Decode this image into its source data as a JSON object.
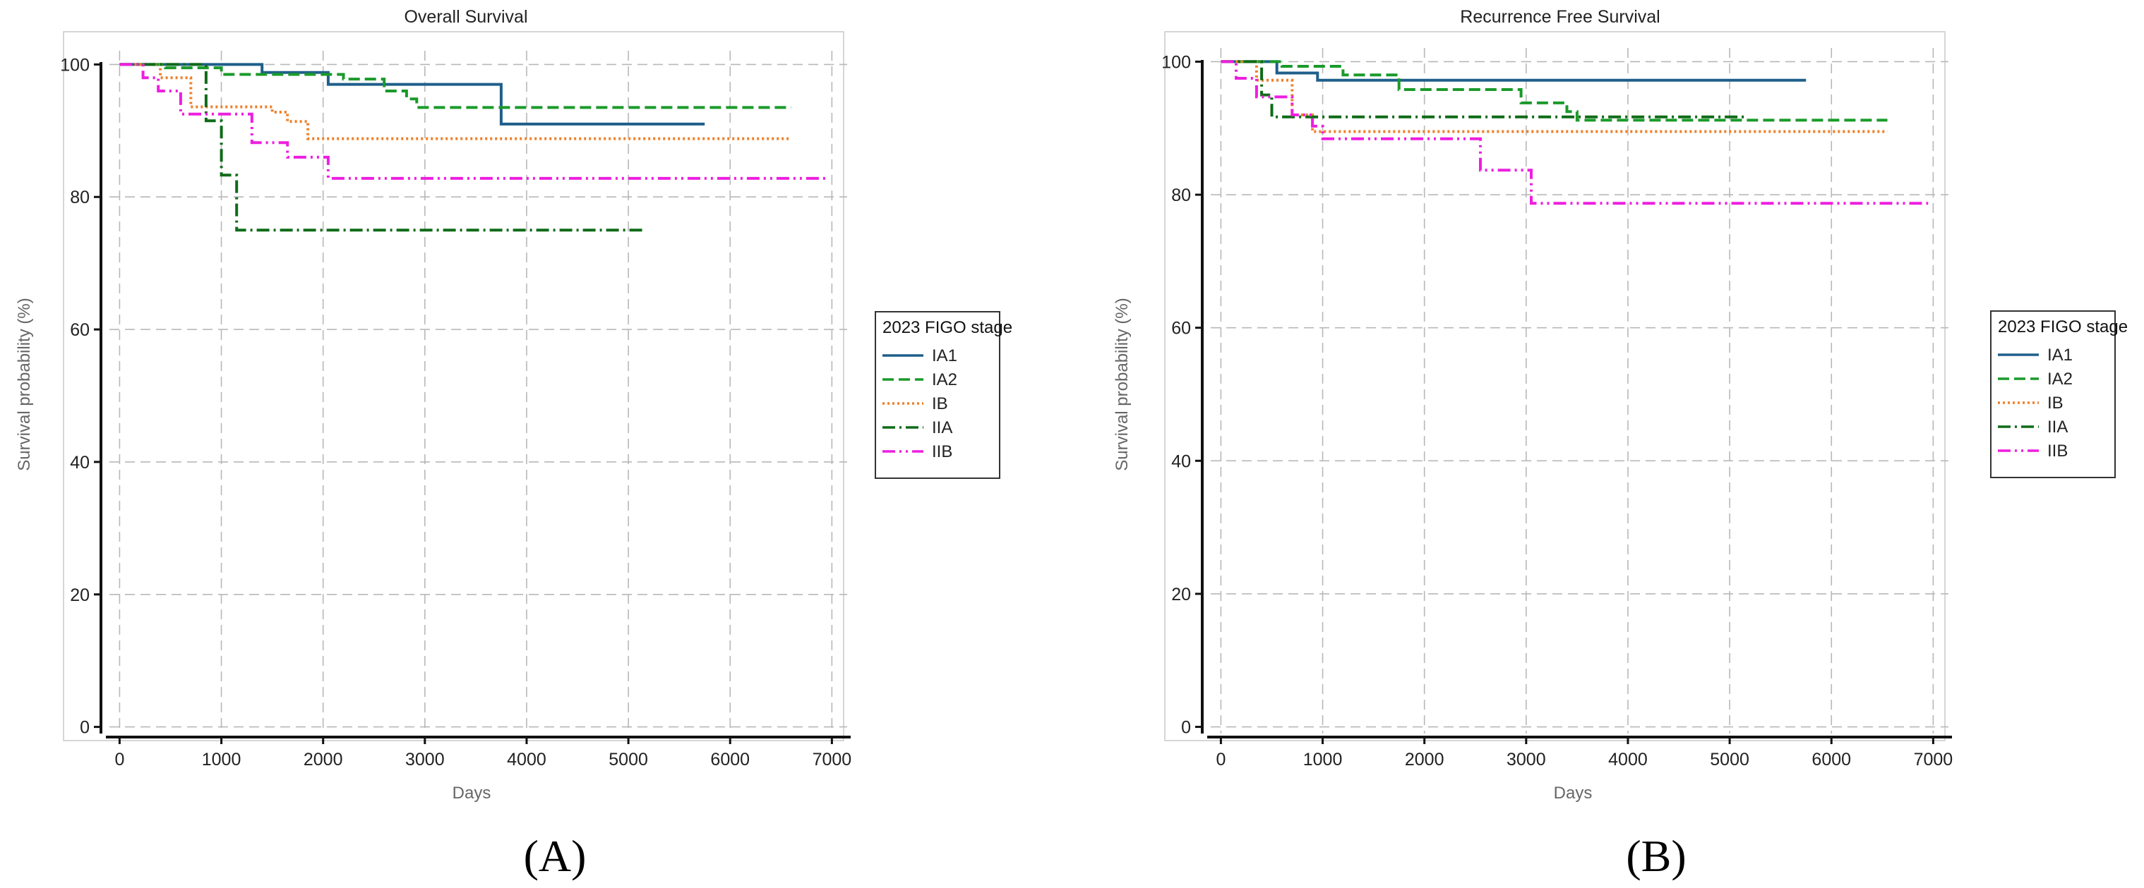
{
  "legend_title": "2023 FIGO stage",
  "colors": {
    "IA1": "#1f5f8b",
    "IA2": "#1a9a2a",
    "IB": "#ef7f28",
    "IIA": "#0f6b18",
    "IIB": "#ee1ee0"
  },
  "chart_data": [
    {
      "type": "line",
      "step": true,
      "panel_label": "(A)",
      "title": "Overall Survival",
      "xlabel": "Days",
      "ylabel": "Survival probability (%)",
      "xlim": [
        -100,
        7150
      ],
      "ylim": [
        -1,
        101
      ],
      "xticks": [
        0,
        1000,
        2000,
        3000,
        4000,
        5000,
        6000,
        7000
      ],
      "yticks": [
        0,
        20,
        40,
        60,
        80,
        100
      ],
      "grid": true,
      "legend_position": "right",
      "series": [
        {
          "name": "IA1",
          "style": "solid",
          "x": [
            0,
            1400,
            1400,
            2050,
            2050,
            3750,
            3750,
            5750
          ],
          "y": [
            100,
            100,
            98.8,
            98.8,
            97,
            97,
            91,
            91
          ]
        },
        {
          "name": "IA2",
          "style": "dashed",
          "x": [
            0,
            450,
            450,
            1000,
            1000,
            2200,
            2200,
            2600,
            2600,
            2820,
            2820,
            2920,
            2920,
            6600
          ],
          "y": [
            100,
            100,
            99.5,
            99.5,
            98.5,
            98.5,
            97.8,
            97.8,
            96,
            96,
            94.8,
            94.8,
            93.5,
            93.5
          ]
        },
        {
          "name": "IB",
          "style": "dotted",
          "x": [
            0,
            400,
            400,
            700,
            700,
            1500,
            1500,
            1650,
            1650,
            1850,
            1850,
            6600
          ],
          "y": [
            100,
            100,
            98,
            98,
            93.6,
            93.6,
            92.8,
            92.8,
            91.4,
            91.4,
            88.8,
            88.8
          ]
        },
        {
          "name": "IIA",
          "style": "dashdot",
          "x": [
            0,
            850,
            850,
            1000,
            1000,
            1150,
            1150,
            5150
          ],
          "y": [
            100,
            100,
            91.5,
            91.5,
            83.3,
            83.3,
            75,
            75
          ]
        },
        {
          "name": "IIB",
          "style": "dashdotdot",
          "x": [
            0,
            230,
            230,
            380,
            380,
            600,
            600,
            1300,
            1300,
            1650,
            1650,
            2050,
            2050,
            6950
          ],
          "y": [
            100,
            100,
            98,
            98,
            96,
            96,
            92.5,
            92.5,
            88.2,
            88.2,
            86,
            86,
            82.8,
            82.8
          ]
        }
      ]
    },
    {
      "type": "line",
      "step": true,
      "panel_label": "(B)",
      "title": "Recurrence Free Survival",
      "xlabel": "Days",
      "ylabel": "Survival probability (%)",
      "xlim": [
        -100,
        7150
      ],
      "ylim": [
        -1,
        101
      ],
      "xticks": [
        0,
        1000,
        2000,
        3000,
        4000,
        5000,
        6000,
        7000
      ],
      "yticks": [
        0,
        20,
        40,
        60,
        80,
        100
      ],
      "grid": true,
      "legend_position": "right",
      "series": [
        {
          "name": "IA1",
          "style": "solid",
          "x": [
            0,
            550,
            550,
            950,
            950,
            5750
          ],
          "y": [
            100,
            100,
            98.3,
            98.3,
            97.2,
            97.2
          ]
        },
        {
          "name": "IA2",
          "style": "dashed",
          "x": [
            0,
            600,
            600,
            1200,
            1200,
            1750,
            1750,
            2950,
            2950,
            3400,
            3400,
            3500,
            3500,
            6550
          ],
          "y": [
            100,
            100,
            99.3,
            99.3,
            98,
            98,
            95.8,
            95.8,
            93.8,
            93.8,
            92.5,
            92.5,
            91.2,
            91.2
          ]
        },
        {
          "name": "IB",
          "style": "dotted",
          "x": [
            0,
            350,
            350,
            700,
            700,
            900,
            900,
            6550
          ],
          "y": [
            100,
            100,
            97.2,
            97.2,
            92,
            92,
            89.5,
            89.5
          ]
        },
        {
          "name": "IIA",
          "style": "dashdot",
          "x": [
            0,
            400,
            400,
            500,
            500,
            5150
          ],
          "y": [
            100,
            100,
            95,
            95,
            91.7,
            91.7
          ]
        },
        {
          "name": "IIB",
          "style": "dashdotdot",
          "x": [
            0,
            150,
            150,
            350,
            350,
            700,
            700,
            900,
            900,
            1000,
            1000,
            2550,
            2550,
            3050,
            3050,
            6950
          ],
          "y": [
            100,
            100,
            97.5,
            97.5,
            94.7,
            94.7,
            92,
            92,
            90.3,
            90.3,
            88.4,
            88.4,
            83.7,
            83.7,
            78.7,
            78.7
          ]
        }
      ]
    }
  ]
}
